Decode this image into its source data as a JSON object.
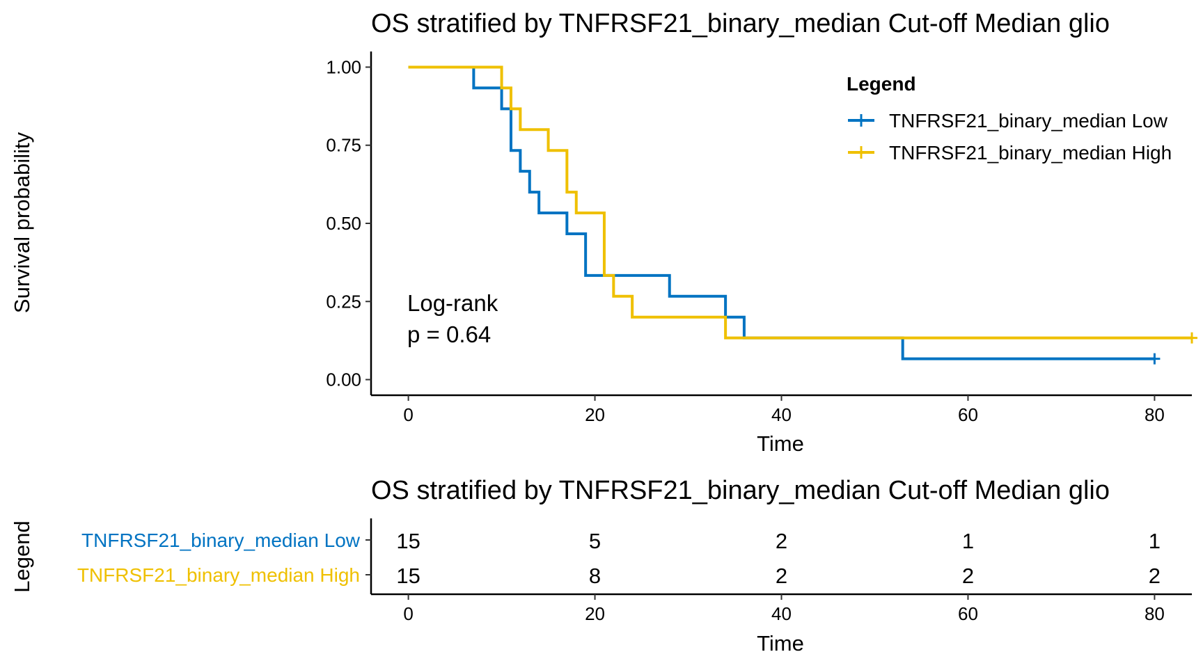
{
  "colors": {
    "low": "#0073C2",
    "high": "#EFC000",
    "axis": "#000000"
  },
  "chart_data": [
    {
      "type": "line",
      "subtype": "kaplan-meier",
      "title": "OS stratified by TNFRSF21_binary_median Cut-off Median glio",
      "xlabel": "Time",
      "ylabel": "Survival probability",
      "xlim": [
        -4,
        84
      ],
      "ylim": [
        -0.05,
        1.05
      ],
      "xticks": [
        0,
        20,
        40,
        60,
        80
      ],
      "yticks": [
        0,
        0.25,
        0.5,
        0.75,
        1
      ],
      "ytick_labels": [
        "0.00",
        "0.25",
        "0.50",
        "0.75",
        "1.00"
      ],
      "grid": false,
      "legend": {
        "title": "Legend",
        "placement": "top-right"
      },
      "annotation": {
        "line1": "Log-rank",
        "line2": "p = 0.64"
      },
      "series": [
        {
          "name": "TNFRSF21_binary_median Low",
          "color": "#0073C2",
          "steps": [
            [
              0,
              1.0
            ],
            [
              7,
              0.9333
            ],
            [
              10,
              0.8667
            ],
            [
              11,
              0.7333
            ],
            [
              12,
              0.6667
            ],
            [
              13,
              0.6
            ],
            [
              14,
              0.5333
            ],
            [
              17,
              0.4667
            ],
            [
              19,
              0.3333
            ],
            [
              28,
              0.2667
            ],
            [
              34,
              0.2
            ],
            [
              36,
              0.1333
            ],
            [
              53,
              0.0667
            ]
          ],
          "end": 80,
          "censored": [
            [
              80,
              0.0667
            ]
          ]
        },
        {
          "name": "TNFRSF21_binary_median High",
          "color": "#EFC000",
          "steps": [
            [
              0,
              1.0
            ],
            [
              10,
              0.9333
            ],
            [
              11,
              0.8667
            ],
            [
              12,
              0.8
            ],
            [
              15,
              0.7333
            ],
            [
              17,
              0.6
            ],
            [
              18,
              0.5333
            ],
            [
              21,
              0.3333
            ],
            [
              22,
              0.2667
            ],
            [
              24,
              0.2
            ],
            [
              34,
              0.1333
            ]
          ],
          "end": 84,
          "censored": [
            [
              84,
              0.1333
            ]
          ]
        }
      ]
    },
    {
      "type": "table",
      "subtype": "risk-table",
      "title": "OS stratified by TNFRSF21_binary_median Cut-off Median glio",
      "xlabel": "Time",
      "ylabel": "Legend",
      "xlim": [
        -4,
        84
      ],
      "xticks": [
        0,
        20,
        40,
        60,
        80
      ],
      "rows": [
        {
          "name": "TNFRSF21_binary_median Low",
          "color": "#0073C2",
          "values": [
            15,
            5,
            2,
            1,
            1
          ]
        },
        {
          "name": "TNFRSF21_binary_median High",
          "color": "#EFC000",
          "values": [
            15,
            8,
            2,
            2,
            2
          ]
        }
      ]
    }
  ]
}
